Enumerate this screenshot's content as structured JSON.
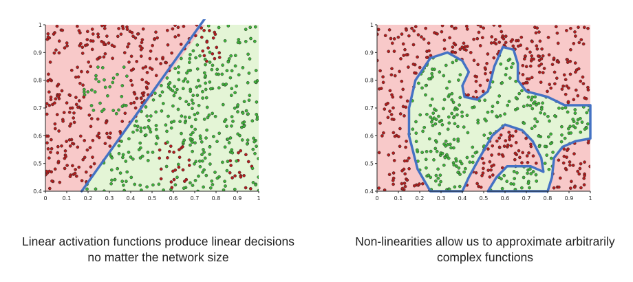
{
  "colors": {
    "class_a_region": "#f8c9c9",
    "class_b_region": "#e4f5d6",
    "class_a_point": "#b41d1d",
    "class_b_point": "#3fb43a",
    "boundary": "#4472c4",
    "axis": "#222222"
  },
  "captions": {
    "left": "Linear activation functions produce linear decisions no matter the network size",
    "right": "Non-linearities allow us to approximate arbitrarily complex functions"
  },
  "chart_data": [
    {
      "type": "scatter",
      "title": "",
      "xlabel": "",
      "ylabel": "",
      "xlim": [
        0,
        1
      ],
      "ylim": [
        0.4,
        1
      ],
      "xticks": [
        "0",
        "0.1",
        "0.2",
        "0.3",
        "0.4",
        "0.5",
        "0.6",
        "0.7",
        "0.8",
        "0.9",
        "1"
      ],
      "yticks": [
        "0.4",
        "0.5",
        "0.6",
        "0.7",
        "0.8",
        "0.9",
        "1"
      ],
      "grid": false,
      "decision_boundary": {
        "kind": "linear",
        "points": [
          [
            0.17,
            0.4
          ],
          [
            0.75,
            1.0
          ]
        ]
      },
      "series": [
        {
          "color": "#b41d1d",
          "description_region": "red class points"
        },
        {
          "color": "#3fb43a",
          "description_region": "green class points"
        }
      ]
    },
    {
      "type": "scatter",
      "title": "",
      "xlabel": "",
      "ylabel": "",
      "xlim": [
        0,
        1
      ],
      "ylim": [
        0.4,
        1
      ],
      "xticks": [
        "0",
        "0.1",
        "0.2",
        "0.3",
        "0.4",
        "0.5",
        "0.6",
        "0.7",
        "0.8",
        "0.9",
        "1"
      ],
      "yticks": [
        "0.4",
        "0.5",
        "0.6",
        "0.7",
        "0.8",
        "0.9",
        "1"
      ],
      "grid": false,
      "decision_boundary": {
        "kind": "nonlinear",
        "points": [
          [
            0.25,
            0.4
          ],
          [
            0.19,
            0.48
          ],
          [
            0.15,
            0.6
          ],
          [
            0.15,
            0.7
          ],
          [
            0.18,
            0.8
          ],
          [
            0.25,
            0.88
          ],
          [
            0.33,
            0.9
          ],
          [
            0.4,
            0.87
          ],
          [
            0.43,
            0.83
          ],
          [
            0.4,
            0.78
          ],
          [
            0.41,
            0.74
          ],
          [
            0.47,
            0.73
          ],
          [
            0.52,
            0.76
          ],
          [
            0.55,
            0.85
          ],
          [
            0.59,
            0.92
          ],
          [
            0.64,
            0.91
          ],
          [
            0.66,
            0.86
          ],
          [
            0.66,
            0.8
          ],
          [
            0.7,
            0.76
          ],
          [
            0.8,
            0.74
          ],
          [
            0.88,
            0.71
          ],
          [
            1.0,
            0.71
          ],
          [
            1.0,
            0.59
          ],
          [
            0.93,
            0.58
          ],
          [
            0.87,
            0.56
          ],
          [
            0.83,
            0.52
          ],
          [
            0.82,
            0.45
          ],
          [
            0.8,
            0.4
          ],
          [
            0.52,
            0.4
          ],
          [
            0.56,
            0.45
          ],
          [
            0.61,
            0.49
          ],
          [
            0.72,
            0.49
          ],
          [
            0.78,
            0.47
          ],
          [
            0.77,
            0.52
          ],
          [
            0.73,
            0.58
          ],
          [
            0.68,
            0.62
          ],
          [
            0.6,
            0.64
          ],
          [
            0.54,
            0.6
          ],
          [
            0.48,
            0.52
          ],
          [
            0.43,
            0.45
          ],
          [
            0.4,
            0.4
          ]
        ]
      },
      "series": [
        {
          "color": "#b41d1d",
          "description_region": "red class points"
        },
        {
          "color": "#3fb43a",
          "description_region": "green class points"
        }
      ]
    }
  ]
}
